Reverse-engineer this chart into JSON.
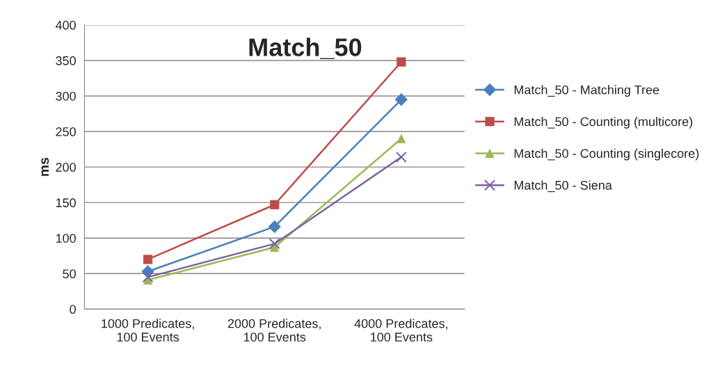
{
  "chart_data": {
    "type": "line",
    "title": "Match_50",
    "ylabel": "ms",
    "categories": [
      "1000 Predicates,\n100 Events",
      "2000 Predicates,\n100 Events",
      "4000 Predicates,\n100 Events"
    ],
    "series": [
      {
        "name": "Match_50 - Matching Tree",
        "color": "#4a7ebb",
        "marker": "diamond",
        "values": [
          53,
          116,
          295
        ]
      },
      {
        "name": "Match_50 - Counting (multicore)",
        "color": "#be4b48",
        "marker": "square",
        "values": [
          70,
          147,
          348
        ]
      },
      {
        "name": "Match_50 - Counting (singlecore)",
        "color": "#98b954",
        "marker": "triangle",
        "values": [
          41,
          87,
          240
        ]
      },
      {
        "name": "Match_50 - Siena",
        "color": "#7d60a0",
        "marker": "cross",
        "values": [
          45,
          92,
          214
        ]
      }
    ],
    "ylim": [
      0,
      400
    ],
    "yticks": [
      0,
      50,
      100,
      150,
      200,
      250,
      300,
      350,
      400
    ],
    "grid": "y",
    "legend": "right"
  }
}
